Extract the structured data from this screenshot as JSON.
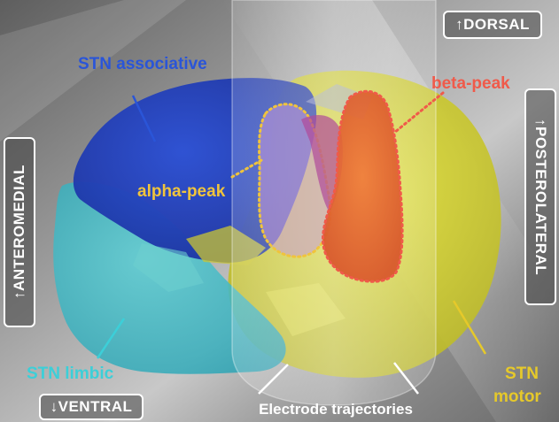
{
  "colors": {
    "associative": "#1d3fc4",
    "limbic": "#3ab8c8",
    "motor": "#d9d52c",
    "alpha": "#f0c43c",
    "beta": "#f05a4a",
    "beta_fill": "#e8602e",
    "text_light": "#ffffff",
    "limbic_text": "#3ccfd8",
    "motor_text": "#e6c92a",
    "associative_text": "#2a55d8"
  },
  "labels": {
    "stn_associative": "STN associative",
    "stn_limbic": "STN limbic",
    "stn_motor_line1": "STN",
    "stn_motor_line2": "motor",
    "alpha_peak": "alpha-peak",
    "beta_peak": "beta-peak",
    "electrode_trajectories": "Electrode trajectories"
  },
  "directions": {
    "dorsal": "↑DORSAL",
    "ventral": "↓VENTRAL",
    "anteromedial": "↑ANTEROMEDIAL",
    "posterolateral": "↑POSTEROLATERAL"
  }
}
